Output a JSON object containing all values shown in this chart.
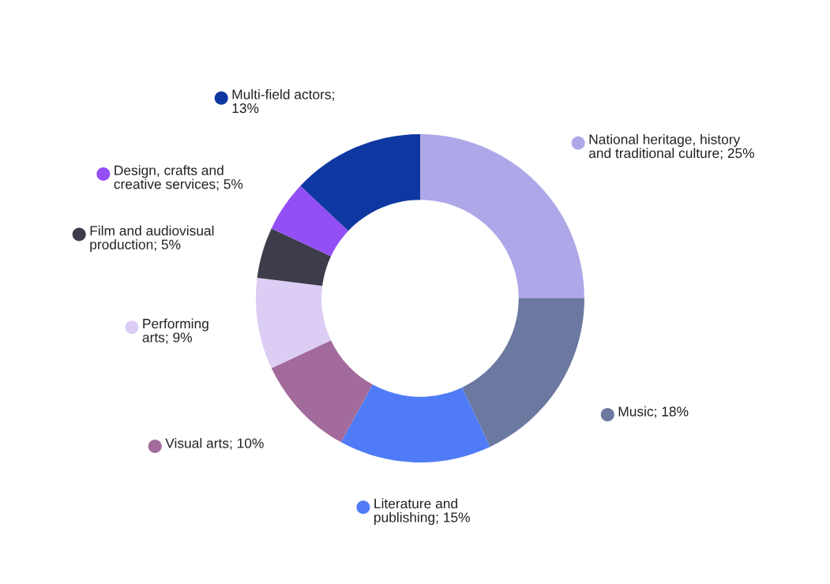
{
  "chart_data": {
    "type": "donut",
    "categories": [
      "National heritage, history\nand traditional culture; 25%",
      "Music; 18%",
      "Literature and\npublishing; 15%",
      "Visual arts; 10%",
      "Performing\narts; 9%",
      "Film and audiovisual\nproduction; 5%",
      "Design, crafts and\ncreative services; 5%",
      "Multi-field actors;\n13%"
    ],
    "values": [
      25,
      18,
      15,
      10,
      9,
      5,
      5,
      13
    ],
    "colors": [
      "#aea8e8",
      "#6b78a0",
      "#4f7cf6",
      "#a26b9b",
      "#dccdf4",
      "#3d3c4b",
      "#934ff5",
      "#0e37a1"
    ],
    "legend": "right"
  }
}
